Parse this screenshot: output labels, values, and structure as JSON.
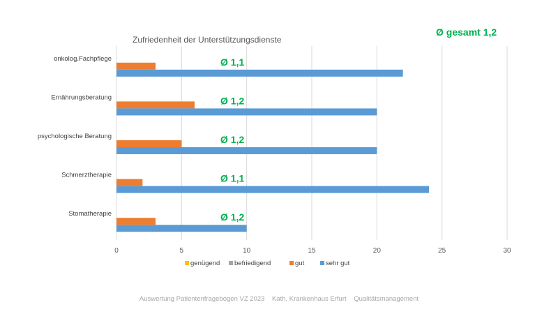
{
  "chart_data": {
    "type": "bar",
    "orientation": "horizontal",
    "title": "Zufriedenheit der Unterstützungsdienste",
    "overall_label": "Ø gesamt 1,2",
    "categories": [
      "onkolog.Fachpflege",
      "Ernährungsberatung",
      "psychologische Beratung",
      "Schmerztherapie",
      "Stomatherapie"
    ],
    "averages": [
      "Ø 1,1",
      "Ø 1,2",
      "Ø 1,2",
      "Ø 1,1",
      "Ø 1,2"
    ],
    "series": [
      {
        "name": "genügend",
        "color": "#ffc000",
        "values": [
          0,
          0,
          0,
          0,
          0
        ]
      },
      {
        "name": "befriedigend",
        "color": "#a5a5a5",
        "values": [
          0,
          0,
          0,
          0,
          0
        ]
      },
      {
        "name": "gut",
        "color": "#ed7d31",
        "values": [
          3,
          6,
          5,
          2,
          3
        ]
      },
      {
        "name": "sehr gut",
        "color": "#5b9bd5",
        "values": [
          22,
          20,
          20,
          24,
          10
        ]
      }
    ],
    "xlim": [
      0,
      30
    ],
    "xticks": [
      "0",
      "5",
      "10",
      "15",
      "20",
      "25",
      "30"
    ],
    "grid": true,
    "legend_position": "bottom"
  },
  "footer": "Auswertung Patientenfragebogen VZ 2023    Kath. Krankenhaus Erfurt    Qualitätsmanagement"
}
